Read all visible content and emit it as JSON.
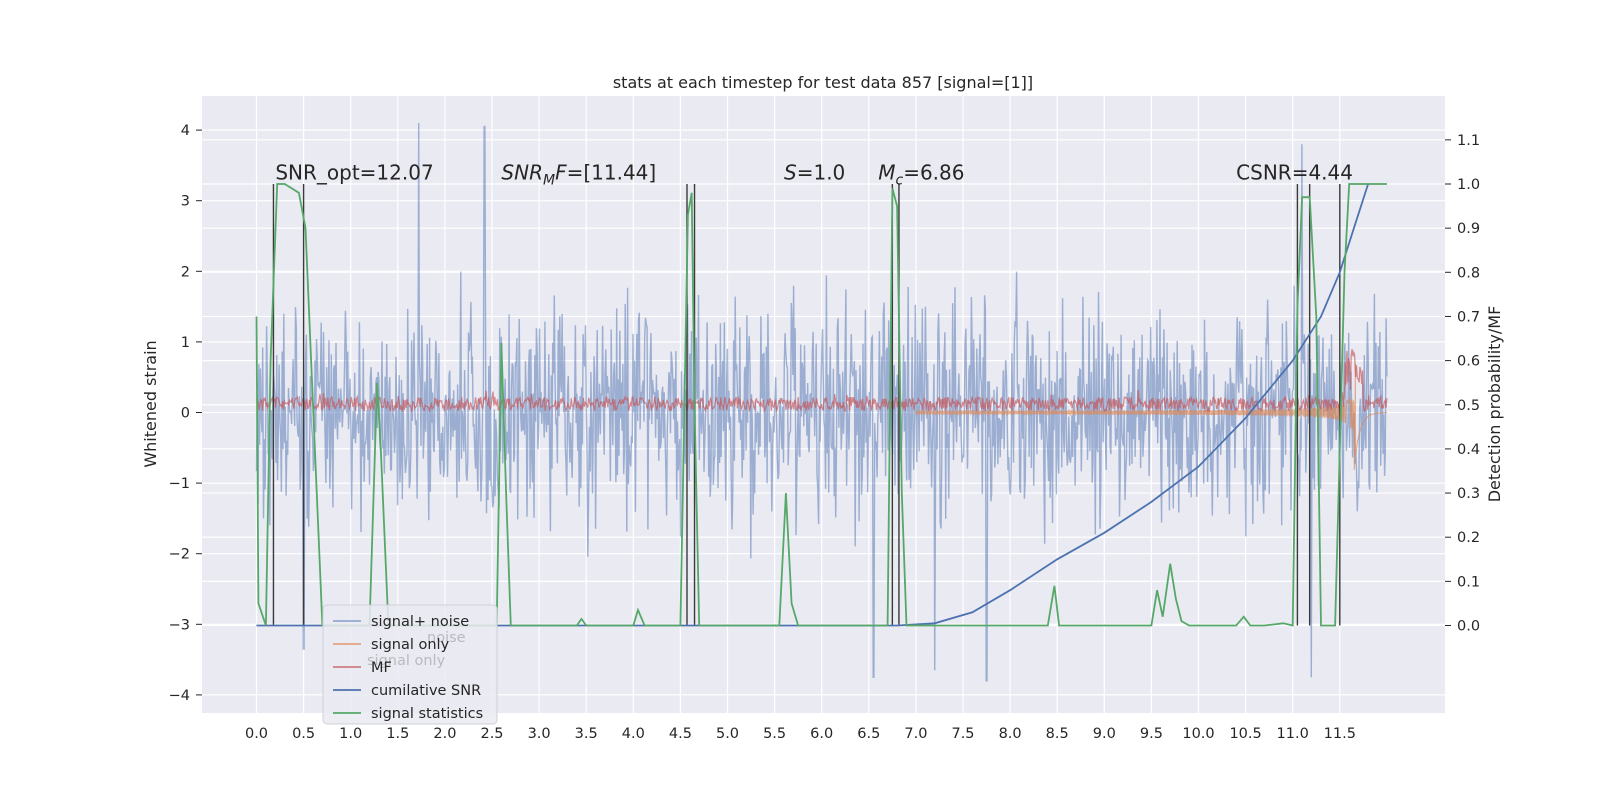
{
  "chart_data": {
    "type": "line",
    "title": "stats at each timestep for test data 857 [signal=[1]]",
    "ylabel": "Whitened strain",
    "y2label": "Detection probability/MF",
    "xlim": [
      -0.6,
      12.6
    ],
    "ylim": [
      -4.25,
      4.45
    ],
    "y2lim": [
      -0.2,
      1.21
    ],
    "x_ticks": [
      "0.0",
      "0.5",
      "1.0",
      "1.5",
      "2.0",
      "2.5",
      "3.0",
      "3.5",
      "4.0",
      "4.5",
      "5.0",
      "5.5",
      "6.0",
      "6.5",
      "7.0",
      "7.5",
      "8.0",
      "8.5",
      "9.0",
      "9.5",
      "10.0",
      "10.5",
      "11.0",
      "11.5"
    ],
    "y_ticks": [
      "4",
      "3",
      "2",
      "1",
      "0",
      "−1",
      "−2",
      "−3",
      "−4"
    ],
    "y2_ticks": [
      "1.1",
      "1.0",
      "0.9",
      "0.8",
      "0.7",
      "0.6",
      "0.5",
      "0.4",
      "0.3",
      "0.2",
      "0.1",
      "0.0"
    ],
    "grid": true,
    "annotations": [
      {
        "prefix": "SNR_opt=12.07",
        "italic": "",
        "sub": "",
        "suffix": "",
        "x": 0.2,
        "y": 3.3
      },
      {
        "prefix": "",
        "italic": "SNR",
        "sub": "M",
        "italic2": "F",
        "suffix": "=[11.44]",
        "x": 2.6,
        "y": 3.3
      },
      {
        "prefix": "",
        "italic": "S",
        "sub": "",
        "suffix": "=1.0",
        "x": 5.6,
        "y": 3.3
      },
      {
        "prefix": "",
        "italic": "M",
        "sub": "c",
        "suffix": "=6.86",
        "x": 6.6,
        "y": 3.3
      },
      {
        "prefix": "CSNR=4.44",
        "italic": "",
        "sub": "",
        "suffix": "",
        "x": 10.4,
        "y": 3.3
      }
    ],
    "series": [
      {
        "name": "signal+ noise",
        "color": "#4c72b0",
        "kind": "noise_band",
        "t_start": 0.0,
        "t_end": 12.0,
        "amplitude_typical": [
          -2.5,
          2.5
        ],
        "peaks": [
          [
            1.72,
            4.1
          ],
          [
            2.42,
            4.05
          ],
          [
            11.1,
            3.8
          ],
          [
            11.2,
            -3.75
          ],
          [
            7.2,
            -3.65
          ],
          [
            6.55,
            -3.75
          ],
          [
            7.75,
            -3.8
          ],
          [
            0.5,
            -3.35
          ]
        ]
      },
      {
        "name": "signal only",
        "color": "#dd8452",
        "kind": "chirp",
        "t_start": 7.0,
        "t_merge": 11.65,
        "t_end": 12.0
      },
      {
        "name": "MF",
        "color": "#c44e52",
        "kind": "mf_band",
        "t_start": 0.0,
        "t_end": 12.0,
        "level": [
          0.0,
          0.25
        ]
      },
      {
        "name": "cumilative SNR",
        "color": "#4c72b0",
        "kind": "line",
        "x": [
          0.0,
          6.8,
          7.2,
          7.6,
          8.0,
          8.5,
          9.0,
          9.5,
          10.0,
          10.5,
          11.0,
          11.3,
          11.5,
          11.65,
          11.8
        ],
        "y": [
          0.0,
          0.0,
          0.005,
          0.03,
          0.08,
          0.15,
          0.21,
          0.28,
          0.36,
          0.47,
          0.6,
          0.7,
          0.8,
          0.9,
          1.0
        ]
      },
      {
        "name": "signal statistics",
        "color": "#55a868",
        "kind": "line",
        "x": [
          0.0,
          0.02,
          0.1,
          0.15,
          0.22,
          0.3,
          0.45,
          0.52,
          0.6,
          0.7,
          1.2,
          1.28,
          1.32,
          1.4,
          2.55,
          2.6,
          2.65,
          2.7,
          3.4,
          3.45,
          3.5,
          4.0,
          4.05,
          4.12,
          4.5,
          4.58,
          4.62,
          4.65,
          4.7,
          5.55,
          5.62,
          5.68,
          5.75,
          6.7,
          6.75,
          6.8,
          6.85,
          6.9,
          8.4,
          8.47,
          8.52,
          9.5,
          9.56,
          9.62,
          9.7,
          9.76,
          9.82,
          9.9,
          10.4,
          10.48,
          10.55,
          10.7,
          10.9,
          11.0,
          11.05,
          11.1,
          11.18,
          11.25,
          11.3,
          11.35,
          11.45,
          11.55,
          11.6,
          11.65,
          12.0
        ],
        "y": [
          0.7,
          0.05,
          0.0,
          0.6,
          1.0,
          1.0,
          0.98,
          0.9,
          0.5,
          0.0,
          0.0,
          0.55,
          0.4,
          0.0,
          0.0,
          0.64,
          0.3,
          0.0,
          0.0,
          0.015,
          0.0,
          0.0,
          0.035,
          0.0,
          0.0,
          0.93,
          0.98,
          0.5,
          0.0,
          0.0,
          0.3,
          0.05,
          0.0,
          0.0,
          0.99,
          0.95,
          0.3,
          0.0,
          0.0,
          0.09,
          0.0,
          0.0,
          0.08,
          0.02,
          0.14,
          0.06,
          0.01,
          0.0,
          0.0,
          0.02,
          0.0,
          0.0,
          0.005,
          0.0,
          0.72,
          0.97,
          0.97,
          0.7,
          0.0,
          0.0,
          0.0,
          0.8,
          1.0,
          1.0,
          1.0
        ]
      }
    ],
    "vlines": [
      0.18,
      0.5,
      4.57,
      4.65,
      6.75,
      6.82,
      11.05,
      11.18,
      11.5
    ],
    "legend": {
      "placement": "lower-left",
      "entries": [
        "signal+ noise",
        "signal only",
        "MF",
        "cumilative SNR",
        "signal statistics"
      ],
      "ghost_entries": [
        "noise",
        "signal only"
      ]
    }
  }
}
